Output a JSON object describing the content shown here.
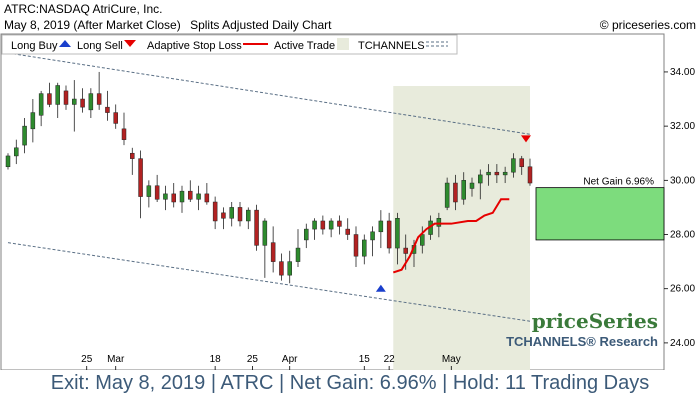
{
  "header": {
    "symbol_line": "ATRC:NASDAQ AtriCure, Inc.",
    "date_line": "May 8, 2019 (After Market Close)",
    "chart_kind": "Splits Adjusted Daily Chart",
    "copyright": "© priceseries.com"
  },
  "legend": {
    "long_buy": "Long Buy",
    "long_sell": "Long Sell",
    "adaptive_stop": "Adaptive Stop Loss",
    "active_trade": "Active Trade",
    "tchannels": "TCHANNELS"
  },
  "branding": {
    "logo": "priceSeries",
    "research": "TCHANNELS® Research"
  },
  "footer": {
    "text": "Exit: May 8, 2019 | ATRC | Net Gain: 6.96% | Hold: 11 Trading Days"
  },
  "colors": {
    "up": "#2e8b2e",
    "down": "#b22222",
    "stop": "#e60000",
    "gain_fill": "#7ddc7d",
    "active_fill": "#e8ebdc",
    "channel": "#5a6f85",
    "buy_arrow": "#1a3fcc",
    "sell_arrow": "#e60000"
  },
  "chart_data": {
    "type": "candlestick",
    "ylim": [
      23,
      35.4
    ],
    "y_ticks": [
      "24.00",
      "26.00",
      "28.00",
      "30.00",
      "32.00",
      "34.00"
    ],
    "x_tick_labels": [
      "25",
      "Mar",
      "18",
      "25",
      "Apr",
      "15",
      "22",
      "May"
    ],
    "x_tick_bars": [
      19,
      26,
      50,
      59,
      68,
      86,
      92,
      107
    ],
    "annotation": "Net Gain 6.96%",
    "trade": {
      "entry_bar": 93,
      "exit_bar": 115,
      "entry_price": 27.8,
      "exit_price": 29.73
    },
    "channel": {
      "upper": {
        "start": [
          0,
          34.7
        ],
        "end": [
          115,
          31.7
        ]
      },
      "lower": {
        "start": [
          0,
          27.7
        ],
        "end": [
          115,
          24.8
        ]
      }
    },
    "candles": [
      [
        0,
        30.5,
        31.0,
        30.4,
        30.9
      ],
      [
        2,
        30.9,
        31.5,
        30.6,
        31.2
      ],
      [
        4,
        31.3,
        32.3,
        31.0,
        32.0
      ],
      [
        6,
        31.9,
        33.0,
        31.4,
        32.5
      ],
      [
        8,
        32.4,
        33.3,
        32.0,
        33.2
      ],
      [
        10,
        33.2,
        33.6,
        32.7,
        32.8
      ],
      [
        12,
        32.8,
        33.6,
        32.3,
        33.5
      ],
      [
        14,
        33.3,
        33.5,
        32.6,
        32.8
      ],
      [
        16,
        32.8,
        33.7,
        31.8,
        33.0
      ],
      [
        18,
        33.0,
        33.4,
        32.5,
        32.7
      ],
      [
        20,
        32.6,
        33.4,
        32.3,
        33.2
      ],
      [
        22,
        33.2,
        34.0,
        32.6,
        32.8
      ],
      [
        24,
        32.7,
        33.3,
        32.2,
        32.5
      ],
      [
        26,
        32.5,
        32.8,
        31.9,
        32.1
      ],
      [
        28,
        31.9,
        32.5,
        31.3,
        31.5
      ],
      [
        30,
        31.0,
        31.2,
        30.2,
        30.8
      ],
      [
        32,
        30.8,
        31.1,
        28.6,
        29.4
      ],
      [
        34,
        29.4,
        30.0,
        29.0,
        29.8
      ],
      [
        36,
        29.8,
        30.2,
        29.2,
        29.3
      ],
      [
        38,
        29.3,
        29.8,
        28.9,
        29.5
      ],
      [
        40,
        29.5,
        29.9,
        29.0,
        29.2
      ],
      [
        42,
        29.2,
        29.8,
        28.8,
        29.6
      ],
      [
        44,
        29.6,
        30.0,
        29.2,
        29.3
      ],
      [
        46,
        29.3,
        29.8,
        28.9,
        29.5
      ],
      [
        48,
        29.5,
        29.9,
        29.1,
        29.2
      ],
      [
        50,
        29.2,
        29.4,
        28.2,
        28.5
      ],
      [
        52,
        28.8,
        29.0,
        28.2,
        28.6
      ],
      [
        54,
        28.6,
        29.2,
        28.3,
        29.0
      ],
      [
        56,
        29.0,
        29.2,
        28.3,
        28.5
      ],
      [
        58,
        28.5,
        29.0,
        28.2,
        28.9
      ],
      [
        60,
        28.9,
        29.1,
        27.4,
        27.6
      ],
      [
        62,
        27.6,
        28.6,
        26.4,
        28.5
      ],
      [
        64,
        27.7,
        28.3,
        26.6,
        27.0
      ],
      [
        66,
        27.0,
        27.3,
        26.3,
        26.5
      ],
      [
        68,
        26.5,
        27.4,
        26.2,
        27.0
      ],
      [
        70,
        27.0,
        28.2,
        26.8,
        27.5
      ],
      [
        72,
        27.8,
        28.4,
        27.5,
        28.2
      ],
      [
        74,
        28.2,
        28.6,
        27.8,
        28.5
      ],
      [
        76,
        28.5,
        28.7,
        28.0,
        28.2
      ],
      [
        78,
        28.2,
        28.6,
        27.9,
        28.5
      ],
      [
        80,
        28.5,
        28.7,
        28.0,
        28.3
      ],
      [
        82,
        28.2,
        28.6,
        27.8,
        28.0
      ],
      [
        84,
        28.0,
        28.3,
        26.8,
        27.2
      ],
      [
        86,
        27.2,
        28.0,
        26.9,
        27.8
      ],
      [
        88,
        27.8,
        28.3,
        27.2,
        28.1
      ],
      [
        90,
        28.1,
        28.9,
        27.5,
        28.5
      ],
      [
        92,
        28.5,
        28.8,
        27.3,
        27.5
      ],
      [
        94,
        27.5,
        28.8,
        26.9,
        28.6
      ],
      [
        96,
        27.5,
        28.0,
        26.7,
        27.3
      ],
      [
        98,
        27.3,
        27.8,
        26.8,
        27.6
      ],
      [
        100,
        27.6,
        28.3,
        27.3,
        28.0
      ],
      [
        102,
        28.0,
        28.7,
        27.8,
        28.5
      ],
      [
        104,
        28.3,
        28.8,
        27.9,
        28.6
      ],
      [
        106,
        29.0,
        30.1,
        28.9,
        29.9
      ],
      [
        108,
        29.9,
        30.2,
        28.9,
        29.2
      ],
      [
        110,
        29.3,
        30.3,
        29.1,
        30.0
      ],
      [
        112,
        29.7,
        30.1,
        29.4,
        29.9
      ],
      [
        114,
        29.9,
        30.4,
        29.3,
        30.2
      ],
      [
        116,
        30.2,
        30.6,
        29.8,
        30.3
      ],
      [
        118,
        30.3,
        30.6,
        29.9,
        30.2
      ],
      [
        120,
        30.2,
        30.5,
        29.9,
        30.3
      ],
      [
        122,
        30.3,
        31.0,
        30.1,
        30.8
      ],
      [
        124,
        30.8,
        30.9,
        30.2,
        30.5
      ],
      [
        126,
        30.5,
        30.8,
        29.8,
        29.9
      ]
    ],
    "stop_line": [
      [
        93,
        26.6
      ],
      [
        95,
        26.7
      ],
      [
        97,
        27.2
      ],
      [
        99,
        27.9
      ],
      [
        101,
        28.2
      ],
      [
        103,
        28.4
      ],
      [
        107,
        28.4
      ],
      [
        111,
        28.5
      ],
      [
        113,
        28.5
      ],
      [
        115,
        28.7
      ],
      [
        117,
        28.8
      ],
      [
        119,
        29.3
      ],
      [
        121,
        29.3
      ]
    ]
  }
}
